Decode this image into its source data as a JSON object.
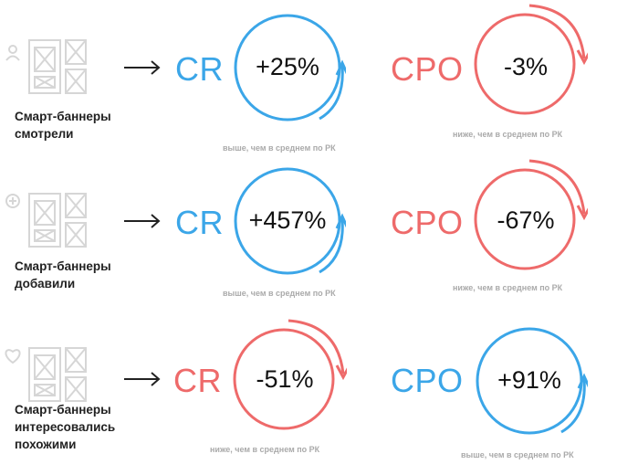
{
  "colors": {
    "blue": "#3ba6e8",
    "red": "#ee6a6a",
    "gray": "#d6d6d6",
    "text": "#222222"
  },
  "rows": [
    {
      "caption_lines": [
        "Смарт-баннеры",
        "смотрели"
      ],
      "wireframe_icon": "user-icon",
      "cr": {
        "label": "CR",
        "value": "+25%",
        "note": "выше, чем в среднем по РК",
        "color": "blue",
        "direction": "up"
      },
      "cpo": {
        "label": "CPO",
        "value": "-3%",
        "note": "ниже, чем в среднем по РК",
        "color": "red",
        "direction": "down"
      }
    },
    {
      "caption_lines": [
        "Смарт-баннеры",
        "добавили"
      ],
      "wireframe_icon": "plus-icon",
      "cr": {
        "label": "CR",
        "value": "+457%",
        "note": "выше, чем в среднем по РК",
        "color": "blue",
        "direction": "up"
      },
      "cpo": {
        "label": "CPO",
        "value": "-67%",
        "note": "ниже, чем в среднем по РК",
        "color": "red",
        "direction": "down"
      }
    },
    {
      "caption_lines": [
        "Смарт-баннеры",
        "интересовались",
        "похожими"
      ],
      "wireframe_icon": "heart-icon",
      "cr": {
        "label": "CR",
        "value": "-51%",
        "note": "ниже, чем в среднем по РК",
        "color": "red",
        "direction": "down"
      },
      "cpo": {
        "label": "CPO",
        "value": "+91%",
        "note": "выше, чем в среднем по РК",
        "color": "blue",
        "direction": "up"
      }
    }
  ]
}
